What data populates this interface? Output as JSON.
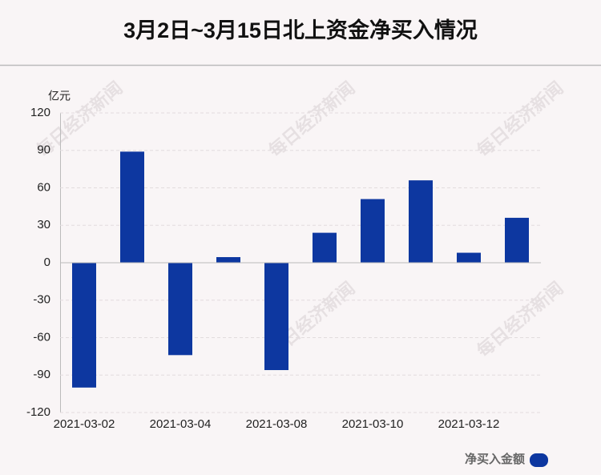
{
  "chart_data": {
    "type": "bar",
    "title": "3月2日~3月15日北上资金净买入情况",
    "y_unit": "亿元",
    "watermark": "每日经济新闻",
    "categories": [
      "2021-03-02",
      null,
      "2021-03-04",
      null,
      "2021-03-08",
      null,
      "2021-03-10",
      null,
      "2021-03-12",
      null
    ],
    "series": [
      {
        "name": "净买入金额",
        "color": "#0d37a0",
        "values": [
          -100,
          89,
          -74,
          4.5,
          -86,
          24,
          51,
          66,
          8,
          36
        ]
      }
    ],
    "ylim": [
      -120,
      120
    ],
    "yticks": [
      120,
      90,
      60,
      30,
      0,
      -30,
      -60,
      -90,
      -120
    ],
    "grid": true
  }
}
